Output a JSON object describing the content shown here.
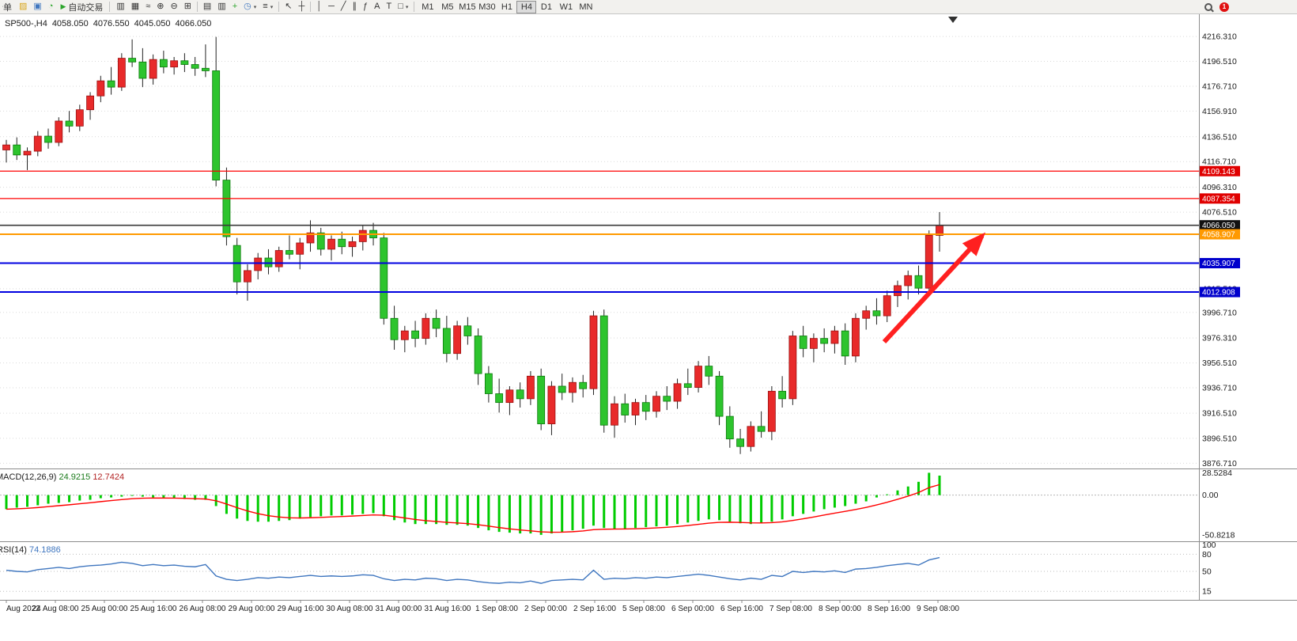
{
  "toolbar": {
    "new_order_label": "新单",
    "autotrade_label": "自动交易",
    "autotrade_icon": "▶",
    "left_icons": [
      {
        "name": "styler-icon",
        "glyph": "▨",
        "color": "#d8a61e"
      },
      {
        "name": "charts-group-icon",
        "glyph": "▣",
        "color": "#3f76bf"
      },
      {
        "name": "scripts-icon",
        "glyph": "◔",
        "color": "#2da52d"
      }
    ],
    "groups": [
      [
        {
          "name": "chart-bars-icon",
          "glyph": "▥"
        },
        {
          "name": "chart-candles-icon",
          "glyph": "▦"
        },
        {
          "name": "chart-line-icon",
          "glyph": "≈"
        },
        {
          "name": "zoom-in-icon",
          "glyph": "⊕"
        },
        {
          "name": "zoom-out-icon",
          "glyph": "⊖"
        },
        {
          "name": "tile-windows-icon",
          "glyph": "⊞"
        }
      ],
      [
        {
          "name": "arrange-icon",
          "glyph": "▤"
        },
        {
          "name": "overlay-icon",
          "glyph": "▥"
        },
        {
          "name": "new-chart-icon",
          "glyph": "+",
          "color": "#2da52d"
        },
        {
          "name": "period-clock-icon",
          "glyph": "◷",
          "color": "#3f76bf",
          "dropdown": true
        },
        {
          "name": "templates-icon",
          "glyph": "≡",
          "dropdown": true
        }
      ],
      [
        {
          "name": "cursor-icon",
          "glyph": "↖"
        },
        {
          "name": "crosshair-icon",
          "glyph": "┼"
        }
      ],
      [
        {
          "name": "vline-icon",
          "glyph": "│"
        },
        {
          "name": "hline-icon",
          "glyph": "─"
        },
        {
          "name": "trendline-icon",
          "glyph": "╱"
        },
        {
          "name": "channel-icon",
          "glyph": "∥"
        },
        {
          "name": "fibo-icon",
          "glyph": "ƒ"
        },
        {
          "name": "text-icon",
          "glyph": "A"
        },
        {
          "name": "label-icon",
          "glyph": "T"
        },
        {
          "name": "shapes-icon",
          "glyph": "□",
          "dropdown": true
        }
      ]
    ],
    "timeframes": {
      "items": [
        "M1",
        "M5",
        "M15",
        "M30",
        "H1",
        "H4",
        "D1",
        "W1",
        "MN"
      ],
      "active": "H4"
    },
    "right": {
      "badge": "1"
    }
  },
  "chart": {
    "header": {
      "symbol_period": "SP500-,H4",
      "ohlc": [
        "4058.050",
        "4076.550",
        "4045.050",
        "4066.050"
      ]
    },
    "price_axis_labels": [
      "4216.310",
      "4196.510",
      "4176.710",
      "4156.910",
      "4136.510",
      "4116.710",
      "4096.310",
      "4076.510",
      "4015.510",
      "3996.710",
      "3976.310",
      "3956.510",
      "3936.710",
      "3916.510",
      "3896.510",
      "3876.710"
    ],
    "hlines": [
      {
        "price": 4109.143,
        "label": "4109.143",
        "color": "#ff0000",
        "width": 1.2,
        "tag": "#e00000"
      },
      {
        "price": 4087.354,
        "label": "4087.354",
        "color": "#ff0000",
        "width": 1.2,
        "tag": "#e00000"
      },
      {
        "price": 4066.05,
        "label": "4066.050",
        "color": "#3a3a3a",
        "width": 1.6,
        "tag": "#111111"
      },
      {
        "price": 4058.907,
        "label": "4058.907",
        "color": "#ff9900",
        "width": 2,
        "tag": "#ff9900"
      },
      {
        "price": 4035.907,
        "label": "4035.907",
        "color": "#0000e0",
        "width": 2,
        "tag": "#0000cc"
      },
      {
        "price": 4012.908,
        "label": "4012.908",
        "color": "#0000e0",
        "width": 2,
        "tag": "#0000cc"
      }
    ],
    "date_axis": [
      "Aug 2022",
      "24 Aug 08:00",
      "25 Aug 00:00",
      "25 Aug 16:00",
      "26 Aug 08:00",
      "29 Aug 00:00",
      "29 Aug 16:00",
      "30 Aug 08:00",
      "31 Aug 00:00",
      "31 Aug 16:00",
      "1 Sep 08:00",
      "2 Sep 00:00",
      "2 Sep 16:00",
      "5 Sep 08:00",
      "6 Sep 00:00",
      "6 Sep 16:00",
      "7 Sep 08:00",
      "8 Sep 00:00",
      "8 Sep 16:00",
      "9 Sep 08:00"
    ],
    "candles": [
      [
        4126,
        4134,
        4116,
        4130
      ],
      [
        4130,
        4136,
        4118,
        4122
      ],
      [
        4122,
        4128,
        4110,
        4125
      ],
      [
        4125,
        4141,
        4121,
        4137
      ],
      [
        4137,
        4143,
        4127,
        4132
      ],
      [
        4132,
        4152,
        4129,
        4149
      ],
      [
        4149,
        4157,
        4140,
        4145
      ],
      [
        4145,
        4162,
        4141,
        4158
      ],
      [
        4158,
        4172,
        4150,
        4169
      ],
      [
        4169,
        4185,
        4164,
        4181
      ],
      [
        4181,
        4192,
        4170,
        4176
      ],
      [
        4176,
        4203,
        4173,
        4199
      ],
      [
        4199,
        4214,
        4192,
        4196
      ],
      [
        4196,
        4207,
        4176,
        4183
      ],
      [
        4183,
        4202,
        4178,
        4198
      ],
      [
        4198,
        4205,
        4187,
        4192
      ],
      [
        4192,
        4200,
        4186,
        4197
      ],
      [
        4197,
        4203,
        4188,
        4194
      ],
      [
        4194,
        4200,
        4185,
        4191
      ],
      [
        4191,
        4210,
        4184,
        4189
      ],
      [
        4189,
        4216,
        4097,
        4102
      ],
      [
        4102,
        4112,
        4050,
        4057
      ],
      [
        4050,
        4056,
        4011,
        4021
      ],
      [
        4021,
        4035,
        4006,
        4030
      ],
      [
        4030,
        4044,
        4023,
        4040
      ],
      [
        4040,
        4047,
        4027,
        4033
      ],
      [
        4033,
        4049,
        4029,
        4046
      ],
      [
        4046,
        4058,
        4039,
        4043
      ],
      [
        4043,
        4056,
        4031,
        4052
      ],
      [
        4052,
        4070,
        4045,
        4060
      ],
      [
        4060,
        4064,
        4042,
        4047
      ],
      [
        4047,
        4058,
        4038,
        4055
      ],
      [
        4055,
        4061,
        4043,
        4049
      ],
      [
        4049,
        4057,
        4041,
        4053
      ],
      [
        4053,
        4066,
        4046,
        4062
      ],
      [
        4062,
        4068,
        4050,
        4056
      ],
      [
        4056,
        4060,
        3987,
        3992
      ],
      [
        3992,
        4002,
        3967,
        3975
      ],
      [
        3975,
        3986,
        3965,
        3982
      ],
      [
        3982,
        3990,
        3969,
        3976
      ],
      [
        3976,
        3996,
        3971,
        3992
      ],
      [
        3992,
        3999,
        3977,
        3984
      ],
      [
        3984,
        3994,
        3957,
        3964
      ],
      [
        3964,
        3990,
        3959,
        3986
      ],
      [
        3986,
        3993,
        3971,
        3978
      ],
      [
        3978,
        3984,
        3939,
        3948
      ],
      [
        3948,
        3954,
        3925,
        3932
      ],
      [
        3932,
        3944,
        3917,
        3925
      ],
      [
        3925,
        3938,
        3915,
        3935
      ],
      [
        3935,
        3941,
        3921,
        3928
      ],
      [
        3928,
        3950,
        3923,
        3946
      ],
      [
        3946,
        3952,
        3903,
        3908
      ],
      [
        3908,
        3942,
        3899,
        3938
      ],
      [
        3938,
        3948,
        3927,
        3933
      ],
      [
        3933,
        3945,
        3925,
        3941
      ],
      [
        3941,
        3947,
        3929,
        3936
      ],
      [
        3936,
        3998,
        3931,
        3994
      ],
      [
        3994,
        3999,
        3901,
        3907
      ],
      [
        3907,
        3930,
        3897,
        3924
      ],
      [
        3924,
        3932,
        3909,
        3915
      ],
      [
        3915,
        3928,
        3907,
        3925
      ],
      [
        3925,
        3931,
        3911,
        3918
      ],
      [
        3918,
        3934,
        3913,
        3930
      ],
      [
        3930,
        3938,
        3919,
        3926
      ],
      [
        3926,
        3944,
        3920,
        3940
      ],
      [
        3940,
        3952,
        3931,
        3937
      ],
      [
        3937,
        3958,
        3933,
        3954
      ],
      [
        3954,
        3962,
        3939,
        3946
      ],
      [
        3946,
        3950,
        3907,
        3914
      ],
      [
        3914,
        3922,
        3889,
        3896
      ],
      [
        3896,
        3904,
        3884,
        3890
      ],
      [
        3890,
        3910,
        3886,
        3906
      ],
      [
        3906,
        3918,
        3897,
        3902
      ],
      [
        3902,
        3938,
        3895,
        3934
      ],
      [
        3934,
        3946,
        3921,
        3928
      ],
      [
        3928,
        3982,
        3923,
        3978
      ],
      [
        3978,
        3986,
        3961,
        3968
      ],
      [
        3968,
        3980,
        3957,
        3976
      ],
      [
        3976,
        3984,
        3965,
        3972
      ],
      [
        3972,
        3986,
        3964,
        3982
      ],
      [
        3982,
        3988,
        3955,
        3962
      ],
      [
        3962,
        3996,
        3957,
        3992
      ],
      [
        3992,
        4002,
        3983,
        3998
      ],
      [
        3998,
        4008,
        3987,
        3994
      ],
      [
        3994,
        4014,
        3989,
        4010
      ],
      [
        4010,
        4022,
        4001,
        4018
      ],
      [
        4018,
        4030,
        4007,
        4026
      ],
      [
        4026,
        4034,
        4011,
        4016
      ],
      [
        4016,
        4062,
        4012,
        4058
      ],
      [
        4058,
        4076.55,
        4045.05,
        4066.05
      ]
    ]
  },
  "macd": {
    "title": "MACD(12,26,9)",
    "values": [
      "24.9215",
      "12.7424"
    ],
    "axis": [
      "28.5284",
      "0.00",
      "-50.8218"
    ],
    "hist": [
      -18,
      -16,
      -15,
      -13,
      -11,
      -10,
      -9,
      -7,
      -6,
      -4,
      -3,
      -2,
      -1,
      -2,
      -3,
      -4,
      -4,
      -5,
      -6,
      -6,
      -14,
      -24,
      -30,
      -33,
      -34,
      -34,
      -33,
      -32,
      -30,
      -28,
      -27,
      -26,
      -26,
      -25,
      -24,
      -23,
      -27,
      -32,
      -35,
      -37,
      -37,
      -37,
      -38,
      -38,
      -39,
      -42,
      -45,
      -47,
      -48,
      -49,
      -49,
      -50.8,
      -49,
      -47,
      -45,
      -43,
      -39,
      -42,
      -43,
      -43,
      -42,
      -41,
      -40,
      -39,
      -37,
      -35,
      -33,
      -31,
      -32,
      -34,
      -36,
      -37,
      -36,
      -34,
      -31,
      -27,
      -24,
      -21,
      -18,
      -16,
      -14,
      -11,
      -8,
      -3,
      1,
      6,
      11,
      17,
      28.53,
      24.92
    ]
  },
  "rsi": {
    "title": "RSI(14)",
    "value": "74.1886",
    "axis": [
      "100",
      "80",
      "50",
      "15"
    ],
    "levels": [
      80,
      50,
      15
    ],
    "line": [
      52,
      50,
      49,
      53,
      55,
      57,
      55,
      58,
      60,
      61,
      63,
      66,
      64,
      60,
      62,
      60,
      61,
      59,
      58,
      62,
      42,
      36,
      34,
      36,
      39,
      38,
      40,
      39,
      41,
      43,
      41,
      42,
      41,
      42,
      44,
      43,
      37,
      34,
      36,
      35,
      38,
      37,
      34,
      36,
      35,
      32,
      30,
      29,
      31,
      30,
      33,
      29,
      34,
      35,
      36,
      35,
      52,
      36,
      38,
      37,
      39,
      38,
      40,
      39,
      41,
      43,
      45,
      43,
      40,
      37,
      35,
      38,
      36,
      43,
      41,
      50,
      48,
      50,
      49,
      51,
      48,
      54,
      55,
      57,
      60,
      62,
      64,
      61,
      70,
      74.19
    ]
  },
  "annotation": {
    "type": "arrow-up-right",
    "color": "#ff2020"
  },
  "colors": {
    "up": "#e82a2a",
    "up_stroke": "#9a0f0f",
    "down": "#2dc42d",
    "down_stroke": "#0c7a0c",
    "wick": "#222222",
    "grid": "#d9d9d9",
    "macd_hist": "#00cc00",
    "macd_signal": "#ff0000",
    "rsi_line": "#3f76bf",
    "axis_text": "#1a1a1a",
    "panel_border": "#8c8c8c",
    "arrow": "#ff2020"
  }
}
